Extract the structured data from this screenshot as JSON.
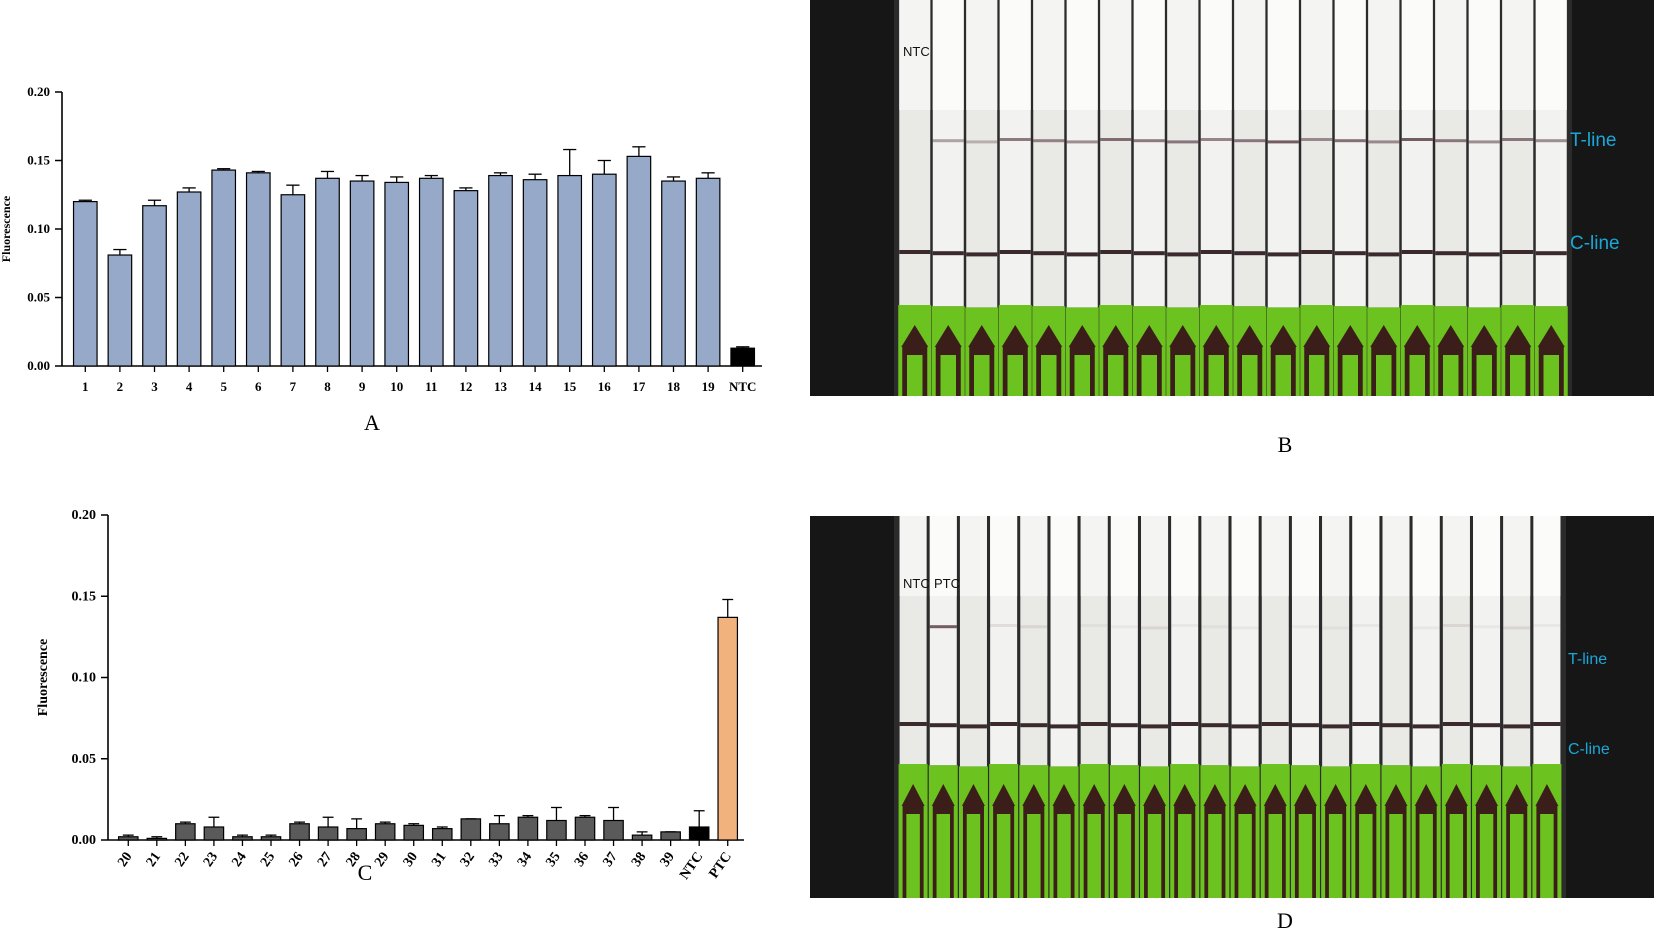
{
  "panels": {
    "A": "A",
    "B": "B",
    "C": "C",
    "D": "D"
  },
  "chart_data": [
    {
      "panel": "A",
      "type": "bar",
      "ylabel": "Fluorescence",
      "ylim": [
        0,
        0.2
      ],
      "yticks": [
        "0.00",
        "0.05",
        "0.10",
        "0.15",
        "0.20"
      ],
      "categories": [
        "1",
        "2",
        "3",
        "4",
        "5",
        "6",
        "7",
        "8",
        "9",
        "10",
        "11",
        "12",
        "13",
        "14",
        "15",
        "16",
        "17",
        "18",
        "19",
        "NTC"
      ],
      "values": [
        0.12,
        0.081,
        0.117,
        0.127,
        0.143,
        0.141,
        0.125,
        0.137,
        0.135,
        0.134,
        0.137,
        0.128,
        0.139,
        0.136,
        0.139,
        0.14,
        0.153,
        0.135,
        0.137,
        0.013
      ],
      "errors": [
        0.001,
        0.004,
        0.004,
        0.003,
        0.001,
        0.001,
        0.007,
        0.005,
        0.004,
        0.004,
        0.002,
        0.002,
        0.002,
        0.004,
        0.019,
        0.01,
        0.007,
        0.003,
        0.004,
        0.001
      ],
      "colors": [
        "#97a9c9",
        "#97a9c9",
        "#97a9c9",
        "#97a9c9",
        "#97a9c9",
        "#97a9c9",
        "#97a9c9",
        "#97a9c9",
        "#97a9c9",
        "#97a9c9",
        "#97a9c9",
        "#97a9c9",
        "#97a9c9",
        "#97a9c9",
        "#97a9c9",
        "#97a9c9",
        "#97a9c9",
        "#97a9c9",
        "#97a9c9",
        "#000000"
      ]
    },
    {
      "panel": "C",
      "type": "bar",
      "ylabel": "Fluorescence",
      "ylim": [
        0,
        0.2
      ],
      "yticks": [
        "0.00",
        "0.05",
        "0.10",
        "0.15",
        "0.20"
      ],
      "categories": [
        "20",
        "21",
        "22",
        "23",
        "24",
        "25",
        "26",
        "27",
        "28",
        "29",
        "30",
        "31",
        "32",
        "33",
        "34",
        "35",
        "36",
        "37",
        "38",
        "39",
        "NTC",
        "PTC"
      ],
      "values": [
        0.002,
        0.001,
        0.01,
        0.008,
        0.002,
        0.002,
        0.01,
        0.008,
        0.007,
        0.01,
        0.009,
        0.007,
        0.013,
        0.01,
        0.014,
        0.012,
        0.014,
        0.012,
        0.003,
        0.005,
        0.008,
        0.137
      ],
      "errors": [
        0.001,
        0.001,
        0.001,
        0.006,
        0.001,
        0.001,
        0.001,
        0.006,
        0.006,
        0.001,
        0.001,
        0.001,
        0.0,
        0.005,
        0.001,
        0.008,
        0.001,
        0.008,
        0.002,
        0.0,
        0.01,
        0.011
      ],
      "colors": [
        "#5a5a5a",
        "#5a5a5a",
        "#5a5a5a",
        "#5a5a5a",
        "#5a5a5a",
        "#5a5a5a",
        "#5a5a5a",
        "#5a5a5a",
        "#5a5a5a",
        "#5a5a5a",
        "#5a5a5a",
        "#5a5a5a",
        "#5a5a5a",
        "#5a5a5a",
        "#5a5a5a",
        "#5a5a5a",
        "#5a5a5a",
        "#5a5a5a",
        "#5a5a5a",
        "#5a5a5a",
        "#000000",
        "#f2b27e"
      ]
    }
  ],
  "photos": {
    "B": {
      "labels": {
        "ntc": "NTC",
        "t_line": "T-line",
        "c_line": "C-line"
      },
      "strip_count": 20,
      "t_line_intensity": [
        0,
        0.4,
        0.3,
        0.6,
        0.55,
        0.5,
        0.65,
        0.6,
        0.6,
        0.55,
        0.6,
        0.75,
        0.5,
        0.65,
        0.5,
        0.75,
        0.6,
        0.5,
        0.6,
        0.5
      ]
    },
    "D": {
      "labels": {
        "ntc": "NTC",
        "ptc": "PTC",
        "t_line": "T-line",
        "c_line": "C-line"
      },
      "strip_count": 22,
      "t_line_intensity": [
        0,
        0.75,
        0,
        0.1,
        0.1,
        0,
        0.05,
        0.05,
        0.1,
        0.05,
        0.05,
        0.05,
        0,
        0.05,
        0.05,
        0.05,
        0,
        0.05,
        0.1,
        0.05,
        0.1,
        0.05
      ]
    }
  },
  "colors": {
    "photo_background": "#161616",
    "strip": "#f0f0ee",
    "pad_green": "#6cc21e",
    "line_label": "#1aa7d8"
  }
}
